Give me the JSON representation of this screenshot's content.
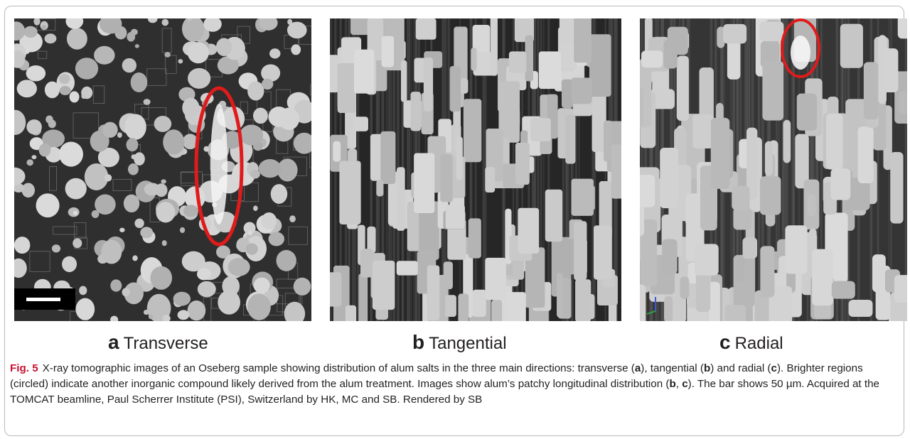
{
  "panels": [
    {
      "id": "a",
      "letter": "a",
      "label": "Transverse"
    },
    {
      "id": "b",
      "letter": "b",
      "label": "Tangential"
    },
    {
      "id": "c",
      "letter": "c",
      "label": "Radial"
    }
  ],
  "caption": {
    "fig": "Fig. 5",
    "t1": "X-ray tomographic images of an Oseberg sample showing distribution of alum salts in the three main directions: transverse (",
    "a1": "a",
    "t2": "), tangential (",
    "b1": "b",
    "t3": ") and radial (",
    "c1": "c",
    "t4": "). Brighter regions (circled) indicate another inorganic compound likely derived from the alum treatment. Images show alum’s patchy longitudinal distribution (",
    "b2": "b",
    "t5": ", ",
    "c2": "c",
    "t6": "). The bar shows 50 µm. Acquired at the TOMCAT beamline, Paul Scherrer Institute (PSI), Switzerland by HK, MC and SB. Rendered by SB"
  },
  "colors": {
    "highlight_circle": "#e01b1b",
    "fig_label": "#c8102e"
  },
  "scale_bar": {
    "length_um": 50
  }
}
